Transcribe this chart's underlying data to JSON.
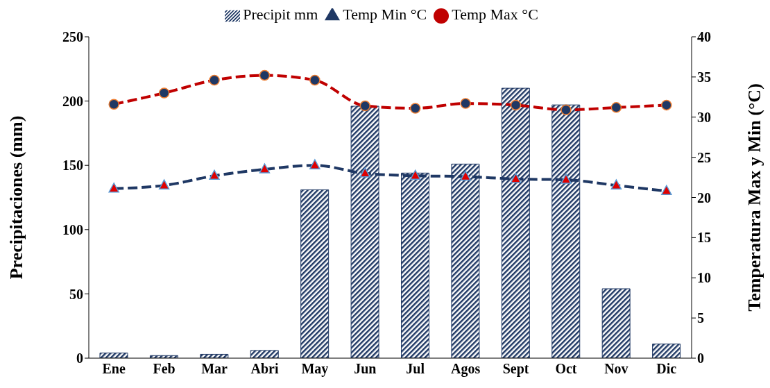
{
  "chart_data": {
    "type": "bar",
    "categories": [
      "Ene",
      "Feb",
      "Mar",
      "Abri",
      "May",
      "Jun",
      "Jul",
      "Agos",
      "Sept",
      "Oct",
      "Nov",
      "Dic"
    ],
    "ylabel": "Precipitaciones (mm)",
    "y2label": "Temperatura Max y Min  (°C)",
    "ylim": [
      0,
      250
    ],
    "yticks": [
      0,
      50,
      100,
      150,
      200,
      250
    ],
    "y2lim": [
      0,
      40
    ],
    "y2ticks": [
      0,
      5,
      10,
      15,
      20,
      25,
      30,
      35,
      40
    ],
    "legend": "top",
    "grid": false,
    "line_style": "dashed",
    "series": [
      {
        "name": "Precipit mm",
        "color": "#1f3864",
        "values": [
          4,
          2,
          3,
          6,
          131,
          196,
          144,
          151,
          210,
          197,
          54,
          11
        ]
      },
      {
        "name": "Temp Min °C",
        "type": "line",
        "axis": "y2",
        "marker": "triangle",
        "color": "#1f3864",
        "values": [
          21.1,
          21.5,
          22.7,
          23.5,
          24.0,
          23.0,
          22.7,
          22.6,
          22.3,
          22.2,
          21.5,
          20.8
        ]
      },
      {
        "name": "Temp Max °C",
        "type": "line",
        "axis": "y2",
        "marker": "circle",
        "color": "#c00000",
        "values": [
          31.6,
          33.0,
          34.6,
          35.2,
          34.6,
          31.4,
          31.1,
          31.7,
          31.5,
          30.9,
          31.2,
          31.5
        ]
      }
    ]
  }
}
